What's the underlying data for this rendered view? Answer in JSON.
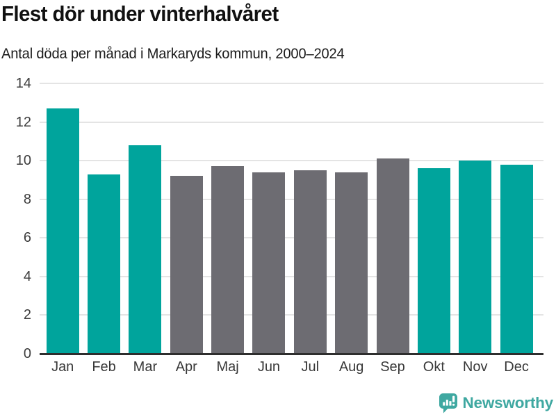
{
  "title": "Flest dör under vinterhalvåret",
  "subtitle": "Antal döda per månad i Markaryds kommun, 2000–2024",
  "branding": {
    "name": "Newsworthy",
    "icon": "newsworthy-speech-bubble-bar-chart-icon",
    "color": "#3fa8a1"
  },
  "colors": {
    "winter": "#00a49c",
    "summer": "#6d6c72",
    "grid": "#e4e4e4",
    "axis": "#2e2e2e"
  },
  "chart_data": {
    "type": "bar",
    "title": "Flest dör under vinterhalvåret",
    "subtitle": "Antal döda per månad i Markaryds kommun, 2000–2024",
    "categories": [
      "Jan",
      "Feb",
      "Mar",
      "Apr",
      "Maj",
      "Jun",
      "Jul",
      "Aug",
      "Sep",
      "Okt",
      "Nov",
      "Dec"
    ],
    "values": [
      12.7,
      9.3,
      10.8,
      9.2,
      9.7,
      9.4,
      9.5,
      9.4,
      10.1,
      9.6,
      10.0,
      9.8
    ],
    "bar_color_keys": [
      "winter",
      "winter",
      "winter",
      "summer",
      "summer",
      "summer",
      "summer",
      "summer",
      "summer",
      "winter",
      "winter",
      "winter"
    ],
    "xlabel": "",
    "ylabel": "",
    "ylim": [
      0,
      14
    ],
    "yticks": [
      0,
      2,
      4,
      6,
      8,
      10,
      12,
      14
    ],
    "grid": true,
    "legend": "none"
  }
}
